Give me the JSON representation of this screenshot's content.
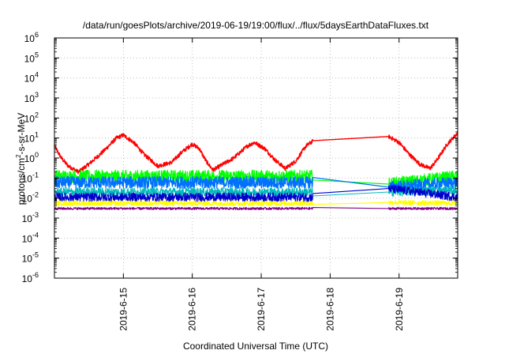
{
  "chart_data": {
    "type": "line",
    "title": "/data/run/goesPlots/archive/2019-06-19/19:00/flux/../flux/5daysEarthDataFluxes.txt",
    "xlabel": "Coordinated Universal Time (UTC)",
    "ylabel_parts": [
      "protons/cm",
      "2",
      "-s-sr-MeV"
    ],
    "yscale": "log",
    "ylim_exp": [
      -6,
      6
    ],
    "xlim_days": [
      14.0,
      19.85
    ],
    "x_ticks": [
      {
        "day": 15,
        "label": "2019-6-15"
      },
      {
        "day": 16,
        "label": "2019-6-16"
      },
      {
        "day": 17,
        "label": "2019-6-17"
      },
      {
        "day": 18,
        "label": "2019-6-18"
      },
      {
        "day": 19,
        "label": "2019-6-19"
      }
    ],
    "y_ticks": [
      {
        "exp": 6,
        "base": "10",
        "sup": "6"
      },
      {
        "exp": 5,
        "base": "10",
        "sup": "5"
      },
      {
        "exp": 4,
        "base": "10",
        "sup": "4"
      },
      {
        "exp": 3,
        "base": "10",
        "sup": "3"
      },
      {
        "exp": 2,
        "base": "10",
        "sup": "2"
      },
      {
        "exp": 1,
        "base": "10",
        "sup": "1"
      },
      {
        "exp": 0,
        "base": "10",
        "sup": "0"
      },
      {
        "exp": -1,
        "base": "10",
        "sup": "-1"
      },
      {
        "exp": -2,
        "base": "10",
        "sup": "-2"
      },
      {
        "exp": -3,
        "base": "10",
        "sup": "-3"
      },
      {
        "exp": -4,
        "base": "10",
        "sup": "-4"
      },
      {
        "exp": -5,
        "base": "10",
        "sup": "-5"
      },
      {
        "exp": -6,
        "base": "10",
        "sup": "-6"
      }
    ],
    "grid": true,
    "data_gap_days": [
      17.75,
      18.85
    ],
    "series": [
      {
        "color": "#ff0000",
        "width": 1.4,
        "noise": 0.1,
        "points": [
          [
            14.0,
            4
          ],
          [
            14.1,
            1
          ],
          [
            14.2,
            0.4
          ],
          [
            14.35,
            0.2
          ],
          [
            14.5,
            0.5
          ],
          [
            14.7,
            2
          ],
          [
            14.9,
            10
          ],
          [
            15.0,
            14
          ],
          [
            15.15,
            6
          ],
          [
            15.3,
            1.5
          ],
          [
            15.5,
            0.4
          ],
          [
            15.7,
            0.6
          ],
          [
            15.85,
            2
          ],
          [
            16.0,
            5
          ],
          [
            16.1,
            3
          ],
          [
            16.2,
            0.7
          ],
          [
            16.3,
            0.25
          ],
          [
            16.45,
            0.5
          ],
          [
            16.6,
            1
          ],
          [
            16.8,
            4
          ],
          [
            16.9,
            6
          ],
          [
            17.05,
            3
          ],
          [
            17.2,
            0.8
          ],
          [
            17.35,
            0.3
          ],
          [
            17.5,
            0.7
          ],
          [
            17.65,
            4
          ],
          [
            17.75,
            7
          ],
          [
            18.85,
            12
          ],
          [
            19.0,
            6
          ],
          [
            19.15,
            1.5
          ],
          [
            19.3,
            0.5
          ],
          [
            19.45,
            0.3
          ],
          [
            19.55,
            0.8
          ],
          [
            19.7,
            5
          ],
          [
            19.85,
            18
          ]
        ]
      },
      {
        "color": "#00ff00",
        "width": 1.2,
        "noise": 0.32,
        "points": [
          [
            14.0,
            0.12
          ],
          [
            17.75,
            0.12
          ],
          [
            18.85,
            0.05
          ],
          [
            19.85,
            0.12
          ]
        ]
      },
      {
        "color": "#0070ff",
        "width": 1.2,
        "noise": 0.3,
        "points": [
          [
            14.0,
            0.06
          ],
          [
            17.75,
            0.06
          ],
          [
            18.85,
            0.035
          ],
          [
            19.85,
            0.06
          ]
        ]
      },
      {
        "color": "#00bbbb",
        "width": 1.1,
        "noise": 0.22,
        "points": [
          [
            14.0,
            0.02
          ],
          [
            17.75,
            0.02
          ],
          [
            18.85,
            0.02
          ],
          [
            19.85,
            0.025
          ]
        ]
      },
      {
        "color": "#0000cc",
        "width": 1.1,
        "noise": 0.22,
        "points": [
          [
            14.0,
            0.011
          ],
          [
            17.75,
            0.011
          ],
          [
            18.85,
            0.03
          ],
          [
            19.85,
            0.011
          ]
        ]
      },
      {
        "color": "#ffff00",
        "width": 1.2,
        "noise": 0.12,
        "points": [
          [
            14.0,
            0.0055
          ],
          [
            17.75,
            0.0055
          ],
          [
            18.85,
            0.006
          ],
          [
            19.85,
            0.0055
          ]
        ]
      },
      {
        "color": "#800080",
        "width": 1.1,
        "noise": 0.06,
        "points": [
          [
            14.0,
            0.003
          ],
          [
            17.75,
            0.003
          ],
          [
            18.85,
            0.003
          ],
          [
            19.85,
            0.003
          ]
        ]
      }
    ]
  }
}
